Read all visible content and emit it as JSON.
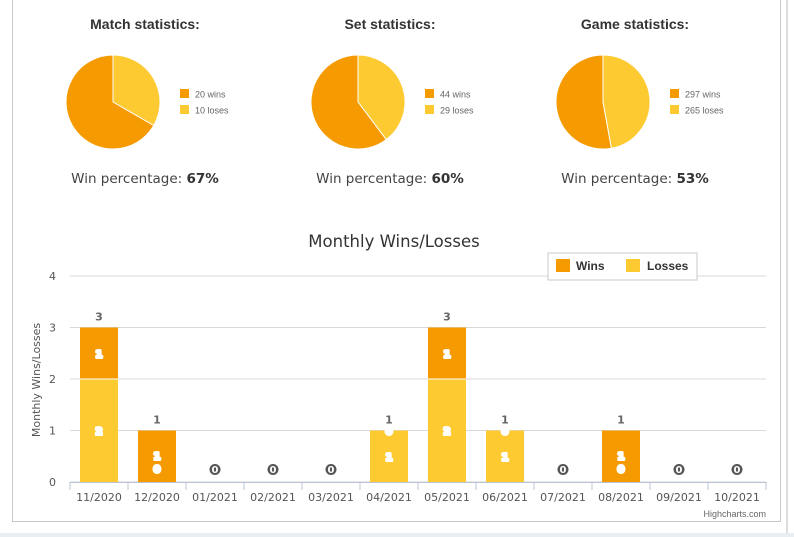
{
  "stats": [
    {
      "title": "Match statistics:",
      "wins_label": "20 wins",
      "loses_label": "10 loses",
      "wins": 20,
      "loses": 10,
      "win_pct_label": "Win percentage:",
      "win_pct": "67%"
    },
    {
      "title": "Set statistics:",
      "wins_label": "44 wins",
      "loses_label": "29 loses",
      "wins": 44,
      "loses": 29,
      "win_pct_label": "Win percentage:",
      "win_pct": "60%"
    },
    {
      "title": "Game statistics:",
      "wins_label": "297 wins",
      "loses_label": "265 loses",
      "wins": 297,
      "loses": 265,
      "win_pct_label": "Win percentage:",
      "win_pct": "53%"
    }
  ],
  "colors": {
    "wins": "#f59a00",
    "losses": "#fdca32",
    "grid": "#d8d8d8",
    "text": "#555555"
  },
  "chart_data": [
    {
      "type": "pie",
      "title": "Match statistics:",
      "categories": [
        "20 wins",
        "10 loses"
      ],
      "values": [
        20,
        10
      ]
    },
    {
      "type": "pie",
      "title": "Set statistics:",
      "categories": [
        "44 wins",
        "29 loses"
      ],
      "values": [
        44,
        29
      ]
    },
    {
      "type": "pie",
      "title": "Game statistics:",
      "categories": [
        "297 wins",
        "265 loses"
      ],
      "values": [
        297,
        265
      ]
    },
    {
      "type": "bar",
      "stacked": true,
      "title": "Monthly Wins/Losses",
      "ylabel": "Monthly Wins/Losses",
      "xlabel": "",
      "ylim": [
        0,
        4
      ],
      "yticks": [
        0,
        1,
        2,
        3,
        4
      ],
      "categories": [
        "11/2020",
        "12/2020",
        "01/2021",
        "02/2021",
        "03/2021",
        "04/2021",
        "05/2021",
        "06/2021",
        "07/2021",
        "08/2021",
        "09/2021",
        "10/2021"
      ],
      "series": [
        {
          "name": "Wins",
          "values": [
            1,
            1,
            0,
            0,
            0,
            0,
            1,
            0,
            0,
            1,
            0,
            0
          ]
        },
        {
          "name": "Losses",
          "values": [
            2,
            0,
            0,
            0,
            0,
            1,
            2,
            1,
            0,
            0,
            0,
            0
          ]
        }
      ],
      "totals": [
        3,
        1,
        0,
        0,
        0,
        1,
        3,
        1,
        0,
        1,
        0,
        0
      ],
      "legend": "top-right",
      "grid": true
    }
  ],
  "credit": "Highcharts.com"
}
